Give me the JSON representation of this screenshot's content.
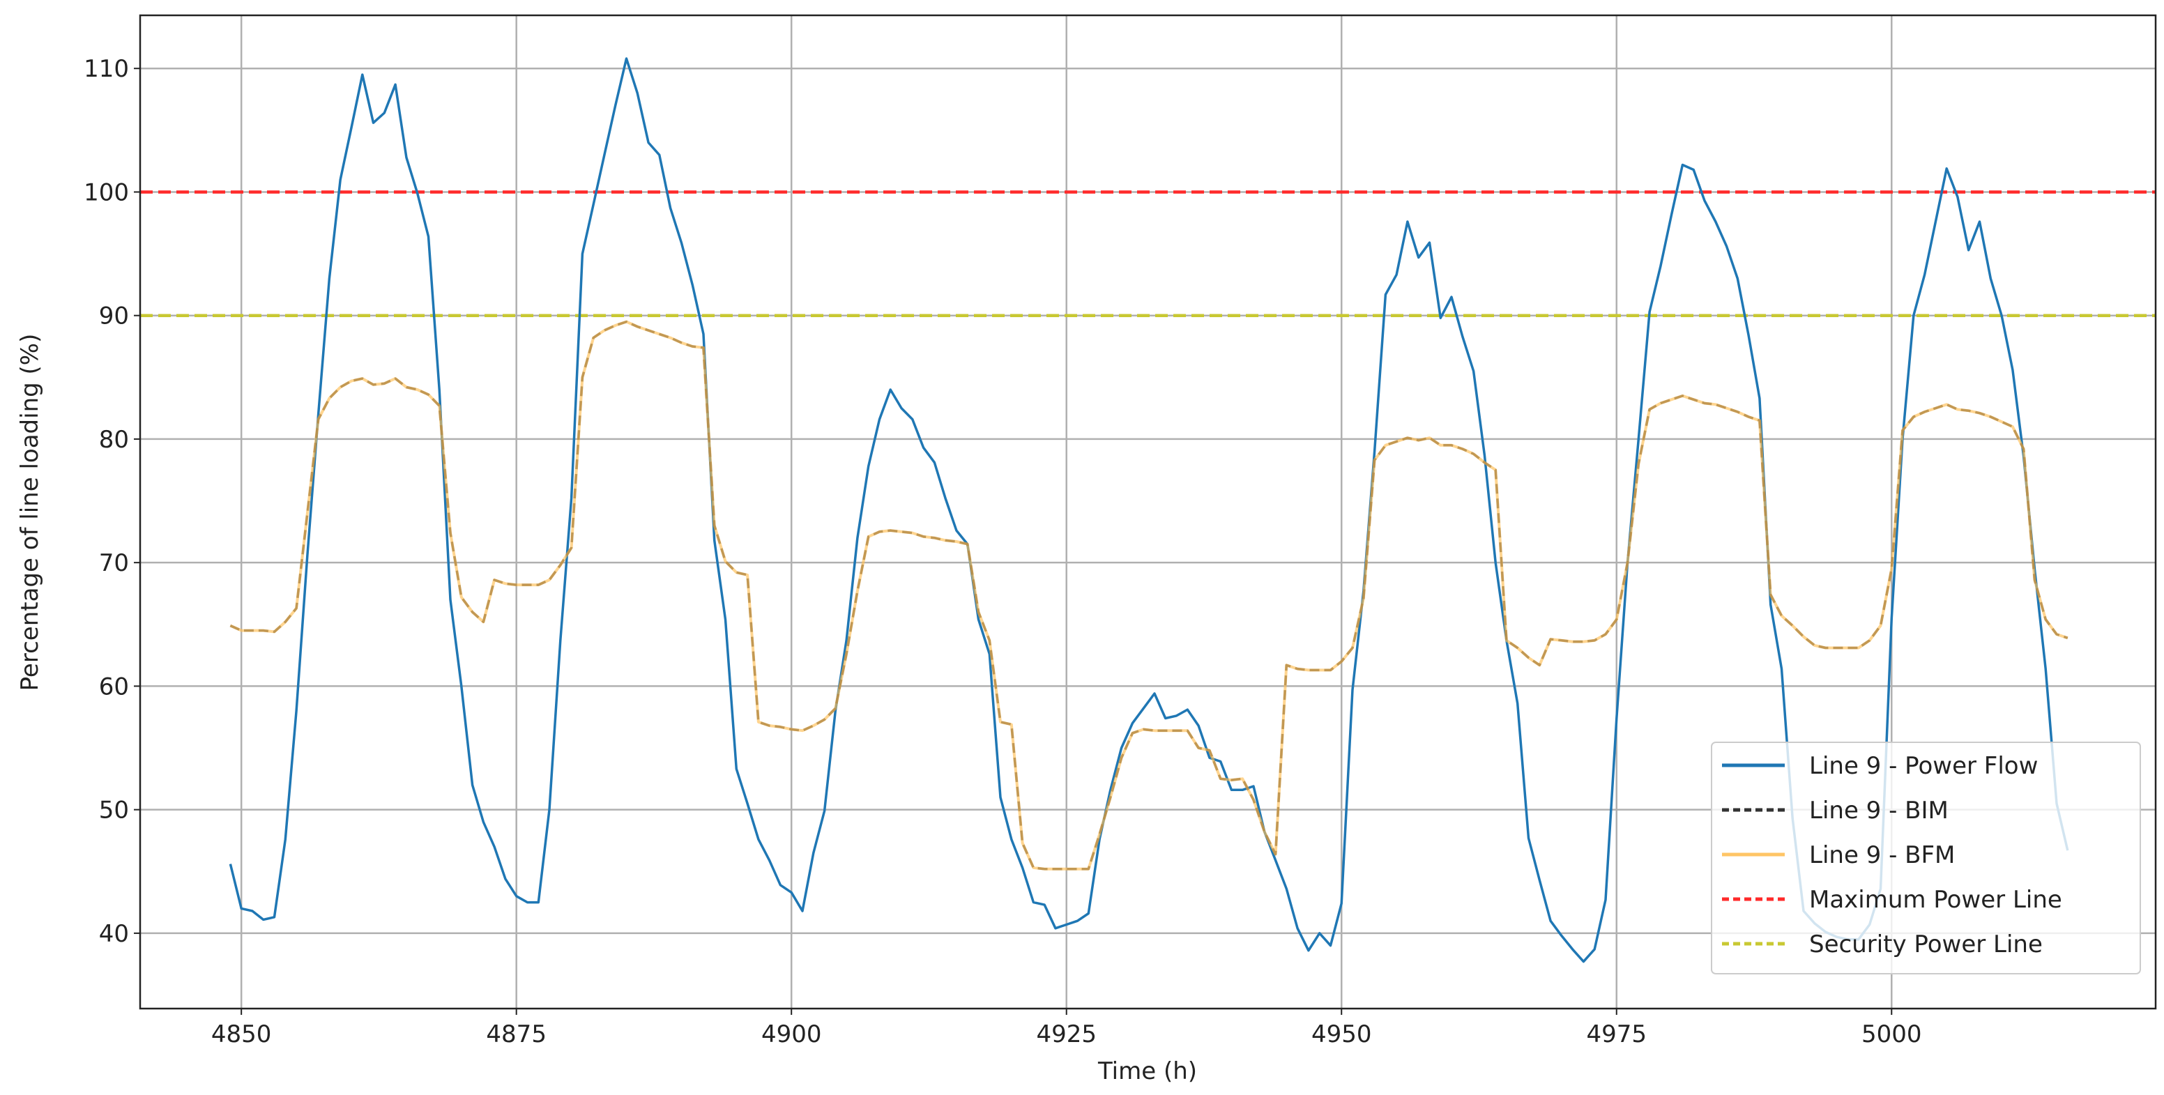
{
  "chart_data": {
    "type": "line",
    "title": "",
    "xlabel": "Time (h)",
    "ylabel": "Percentage of line loading (%)",
    "xlim": [
      4840.8,
      5024
    ],
    "ylim": [
      33.9,
      114.3
    ],
    "xticks": [
      4850,
      4875,
      4900,
      4925,
      4950,
      4975,
      5000
    ],
    "yticks": [
      40,
      50,
      60,
      70,
      80,
      90,
      100,
      110
    ],
    "grid": true,
    "legend_position": "bottom-right",
    "x_start": 4849,
    "x_step": 1,
    "series": [
      {
        "name": "Line 9 - Power Flow",
        "color": "#1f77b4",
        "style": "solid",
        "values": [
          45.6,
          42,
          41.8,
          41.1,
          41.3,
          47.6,
          58,
          70.6,
          82,
          93,
          101,
          105.2,
          109.5,
          105.6,
          106.4,
          108.7,
          102.8,
          99.9,
          96.4,
          84,
          67,
          60,
          52,
          49,
          47,
          44.4,
          43,
          42.5,
          42.5,
          50,
          63.7,
          75.2,
          95,
          99,
          103,
          107,
          110.8,
          108,
          104,
          103,
          98.7,
          95.9,
          92.5,
          88.5,
          71.8,
          65.4,
          53.3,
          50.5,
          47.6,
          45.9,
          43.9,
          43.3,
          41.8,
          46.5,
          49.9,
          58,
          63.7,
          72,
          77.8,
          81.6,
          84,
          82.5,
          81.6,
          79.3,
          78.1,
          75.2,
          72.6,
          71.5,
          65.4,
          62.6,
          51,
          47.6,
          45.3,
          42.5,
          42.3,
          40.4,
          40.7,
          41,
          41.6,
          47.6,
          51.6,
          55,
          57,
          58.2,
          59.4,
          57.4,
          57.6,
          58.1,
          56.8,
          54.2,
          53.9,
          51.6,
          51.6,
          51.9,
          48.2,
          45.9,
          43.6,
          40.4,
          38.6,
          40,
          39,
          42.4,
          59.7,
          67.7,
          79,
          91.7,
          93.3,
          97.6,
          94.7,
          95.9,
          89.8,
          91.5,
          88.3,
          85.5,
          78.7,
          70,
          63.7,
          58.6,
          47.7,
          44.3,
          41,
          39.8,
          38.7,
          37.7,
          38.7,
          42.7,
          57.4,
          70,
          80,
          90.3,
          94,
          98.2,
          102.2,
          101.8,
          99.3,
          97.6,
          95.6,
          93,
          88.4,
          83.3,
          66.6,
          61.4,
          49.3,
          41.8,
          40.8,
          40.1,
          39.7,
          39.5,
          39.5,
          40.7,
          43.6,
          65.5,
          80,
          90,
          93.3,
          97.6,
          101.9,
          99.6,
          95.3,
          97.6,
          93,
          90,
          85.6,
          78.6,
          69.5,
          61.4,
          50.5,
          46.7
        ]
      },
      {
        "name": "Line 9 - BIM",
        "color": "#333333",
        "style": "dashed",
        "values": [
          64.9,
          64.5,
          64.5,
          64.5,
          64.4,
          65.2,
          66.3,
          74,
          81.6,
          83.3,
          84.2,
          84.7,
          84.9,
          84.4,
          84.5,
          84.9,
          84.2,
          84,
          83.6,
          82.7,
          72.4,
          67.2,
          66,
          65.2,
          68.6,
          68.3,
          68.2,
          68.2,
          68.2,
          68.6,
          69.8,
          71.2,
          85,
          88.2,
          88.8,
          89.2,
          89.5,
          89.1,
          88.8,
          88.5,
          88.2,
          87.8,
          87.5,
          87.4,
          73,
          70.1,
          69.2,
          69,
          57.1,
          56.8,
          56.7,
          56.5,
          56.4,
          56.8,
          57.3,
          58.2,
          62.6,
          67.7,
          72.1,
          72.5,
          72.6,
          72.5,
          72.4,
          72.1,
          72,
          71.8,
          71.7,
          71.5,
          66,
          63.7,
          57.1,
          56.9,
          47.3,
          45.3,
          45.2,
          45.2,
          45.2,
          45.2,
          45.2,
          48,
          51,
          54.2,
          56.2,
          56.5,
          56.4,
          56.4,
          56.4,
          56.4,
          55,
          54.8,
          52.5,
          52.4,
          52.5,
          50.8,
          48.2,
          46.4,
          61.7,
          61.4,
          61.3,
          61.3,
          61.3,
          62,
          63.1,
          67.1,
          78.3,
          79.5,
          79.8,
          80.1,
          79.9,
          80.1,
          79.5,
          79.5,
          79.2,
          78.8,
          78.1,
          77.5,
          63.7,
          63.1,
          62.3,
          61.7,
          63.8,
          63.7,
          63.6,
          63.6,
          63.7,
          64.2,
          65.4,
          70,
          78,
          82.4,
          82.9,
          83.2,
          83.5,
          83.2,
          82.9,
          82.8,
          82.5,
          82.2,
          81.8,
          81.5,
          67.4,
          65.7,
          64.9,
          64,
          63.3,
          63.1,
          63.1,
          63.1,
          63.1,
          63.7,
          64.9,
          69.5,
          80.7,
          81.8,
          82.2,
          82.5,
          82.8,
          82.4,
          82.3,
          82.1,
          81.8,
          81.4,
          81,
          79.2,
          68.6,
          65.4,
          64.2,
          63.9
        ]
      },
      {
        "name": "Line 9 - BFM",
        "color": "#ffbf55",
        "style": "solid",
        "values": [
          64.9,
          64.5,
          64.5,
          64.5,
          64.4,
          65.2,
          66.3,
          74,
          81.6,
          83.3,
          84.2,
          84.7,
          84.9,
          84.4,
          84.5,
          84.9,
          84.2,
          84,
          83.6,
          82.7,
          72.4,
          67.2,
          66,
          65.2,
          68.6,
          68.3,
          68.2,
          68.2,
          68.2,
          68.6,
          69.8,
          71.2,
          85,
          88.2,
          88.8,
          89.2,
          89.5,
          89.1,
          88.8,
          88.5,
          88.2,
          87.8,
          87.5,
          87.4,
          73,
          70.1,
          69.2,
          69,
          57.1,
          56.8,
          56.7,
          56.5,
          56.4,
          56.8,
          57.3,
          58.2,
          62.6,
          67.7,
          72.1,
          72.5,
          72.6,
          72.5,
          72.4,
          72.1,
          72,
          71.8,
          71.7,
          71.5,
          66,
          63.7,
          57.1,
          56.9,
          47.3,
          45.3,
          45.2,
          45.2,
          45.2,
          45.2,
          45.2,
          48,
          51,
          54.2,
          56.2,
          56.5,
          56.4,
          56.4,
          56.4,
          56.4,
          55,
          54.8,
          52.5,
          52.4,
          52.5,
          50.8,
          48.2,
          46.4,
          61.7,
          61.4,
          61.3,
          61.3,
          61.3,
          62,
          63.1,
          67.1,
          78.3,
          79.5,
          79.8,
          80.1,
          79.9,
          80.1,
          79.5,
          79.5,
          79.2,
          78.8,
          78.1,
          77.5,
          63.7,
          63.1,
          62.3,
          61.7,
          63.8,
          63.7,
          63.6,
          63.6,
          63.7,
          64.2,
          65.4,
          70,
          78,
          82.4,
          82.9,
          83.2,
          83.5,
          83.2,
          82.9,
          82.8,
          82.5,
          82.2,
          81.8,
          81.5,
          67.4,
          65.7,
          64.9,
          64,
          63.3,
          63.1,
          63.1,
          63.1,
          63.1,
          63.7,
          64.9,
          69.5,
          80.7,
          81.8,
          82.2,
          82.5,
          82.8,
          82.4,
          82.3,
          82.1,
          81.8,
          81.4,
          81,
          79.2,
          68.6,
          65.4,
          64.2,
          63.9
        ]
      }
    ],
    "hlines": [
      {
        "name": "Maximum Power Line",
        "value": 100,
        "color": "#ff2a2a",
        "style": "dashed"
      },
      {
        "name": "Security Power Line",
        "value": 90,
        "color": "#c8c832",
        "style": "dashed"
      }
    ],
    "legend": [
      "Line 9 - Power Flow",
      "Line 9 - BIM",
      "Line 9 - BFM",
      "Maximum Power Line",
      "Security Power Line"
    ]
  }
}
